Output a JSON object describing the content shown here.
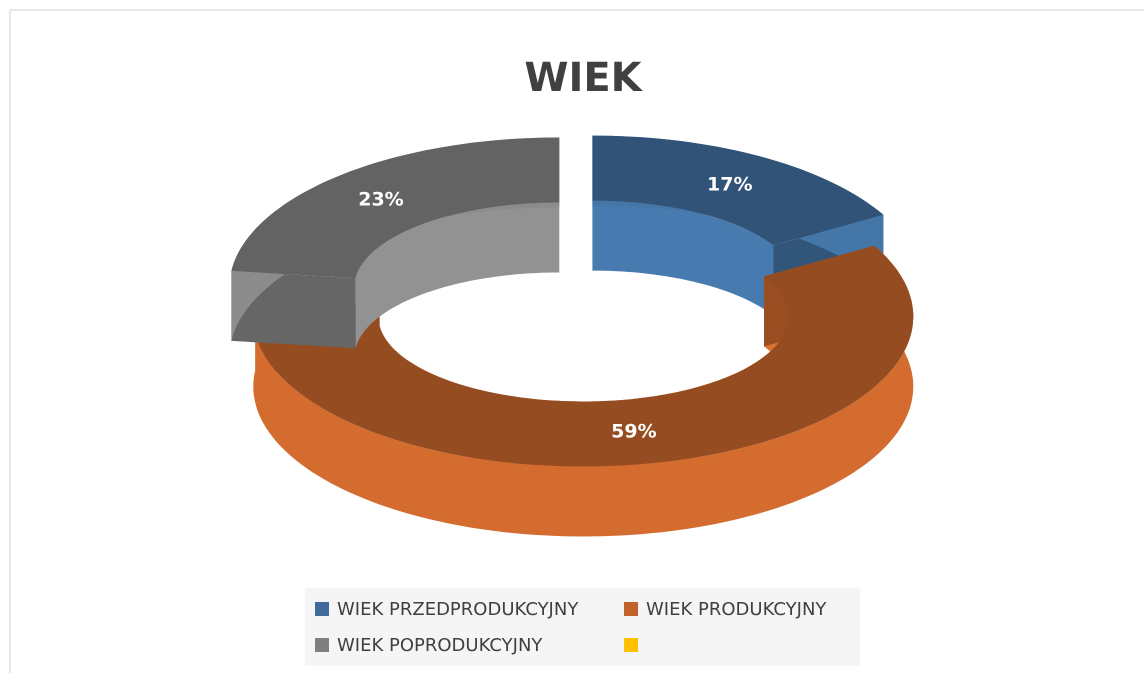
{
  "chart_data": {
    "type": "doughnut3d",
    "title": "WIEK",
    "categories": [
      "WIEK PRZEDPRODUKCYJNY",
      "WIEK PRODUKCYJNY",
      "WIEK POPRODUKCYJNY",
      null
    ],
    "values": [
      17,
      59,
      23,
      0
    ],
    "value_labels": [
      "17%",
      "59%",
      "23%",
      null
    ],
    "colors": [
      "#3e6b99",
      "#c0622a",
      "#7f7f7f",
      "#ffc000"
    ],
    "legend": "bottom"
  }
}
